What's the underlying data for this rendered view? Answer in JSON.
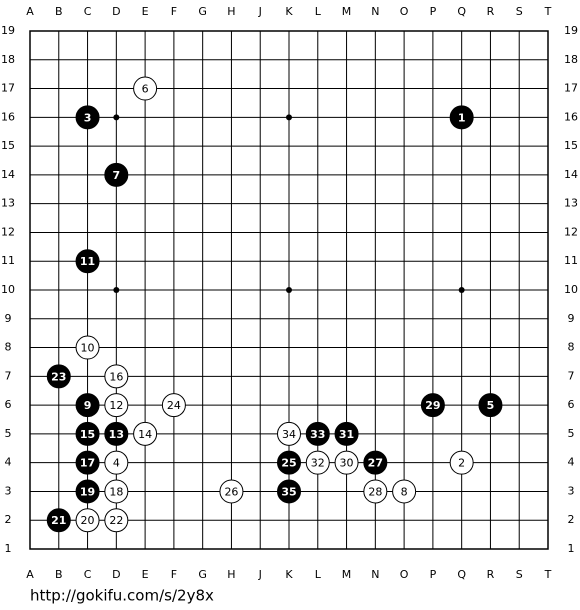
{
  "board": {
    "columns": [
      "A",
      "B",
      "C",
      "D",
      "E",
      "F",
      "G",
      "H",
      "J",
      "K",
      "L",
      "M",
      "N",
      "O",
      "P",
      "Q",
      "R",
      "S",
      "T"
    ],
    "rows": [
      1,
      2,
      3,
      4,
      5,
      6,
      7,
      8,
      9,
      10,
      11,
      12,
      13,
      14,
      15,
      16,
      17,
      18,
      19
    ],
    "stones": [
      {
        "move": 1,
        "color": "black",
        "col": "Q",
        "row": 16
      },
      {
        "move": 2,
        "color": "white",
        "col": "Q",
        "row": 4
      },
      {
        "move": 3,
        "color": "black",
        "col": "C",
        "row": 16
      },
      {
        "move": 4,
        "color": "white",
        "col": "D",
        "row": 4
      },
      {
        "move": 5,
        "color": "black",
        "col": "R",
        "row": 6
      },
      {
        "move": 6,
        "color": "white",
        "col": "E",
        "row": 17
      },
      {
        "move": 7,
        "color": "black",
        "col": "D",
        "row": 14
      },
      {
        "move": 8,
        "color": "white",
        "col": "O",
        "row": 3
      },
      {
        "move": 9,
        "color": "black",
        "col": "C",
        "row": 6
      },
      {
        "move": 10,
        "color": "white",
        "col": "C",
        "row": 8
      },
      {
        "move": 11,
        "color": "black",
        "col": "C",
        "row": 11
      },
      {
        "move": 12,
        "color": "white",
        "col": "D",
        "row": 6
      },
      {
        "move": 13,
        "color": "black",
        "col": "D",
        "row": 5
      },
      {
        "move": 14,
        "color": "white",
        "col": "E",
        "row": 5
      },
      {
        "move": 15,
        "color": "black",
        "col": "C",
        "row": 5
      },
      {
        "move": 16,
        "color": "white",
        "col": "D",
        "row": 7
      },
      {
        "move": 17,
        "color": "black",
        "col": "C",
        "row": 4
      },
      {
        "move": 18,
        "color": "white",
        "col": "D",
        "row": 3
      },
      {
        "move": 19,
        "color": "black",
        "col": "C",
        "row": 3
      },
      {
        "move": 20,
        "color": "white",
        "col": "C",
        "row": 2
      },
      {
        "move": 21,
        "color": "black",
        "col": "B",
        "row": 2
      },
      {
        "move": 22,
        "color": "white",
        "col": "D",
        "row": 2
      },
      {
        "move": 23,
        "color": "black",
        "col": "B",
        "row": 7
      },
      {
        "move": 24,
        "color": "white",
        "col": "F",
        "row": 6
      },
      {
        "move": 25,
        "color": "black",
        "col": "K",
        "row": 4
      },
      {
        "move": 26,
        "color": "white",
        "col": "H",
        "row": 3
      },
      {
        "move": 27,
        "color": "black",
        "col": "N",
        "row": 4
      },
      {
        "move": 28,
        "color": "white",
        "col": "N",
        "row": 3
      },
      {
        "move": 29,
        "color": "black",
        "col": "P",
        "row": 6
      },
      {
        "move": 30,
        "color": "white",
        "col": "M",
        "row": 4
      },
      {
        "move": 31,
        "color": "black",
        "col": "M",
        "row": 5
      },
      {
        "move": 32,
        "color": "white",
        "col": "L",
        "row": 4
      },
      {
        "move": 33,
        "color": "black",
        "col": "L",
        "row": 5
      },
      {
        "move": 34,
        "color": "white",
        "col": "K",
        "row": 5
      },
      {
        "move": 35,
        "color": "black",
        "col": "K",
        "row": 3
      }
    ]
  },
  "url": "http://gokifu.com/s/2y8x"
}
